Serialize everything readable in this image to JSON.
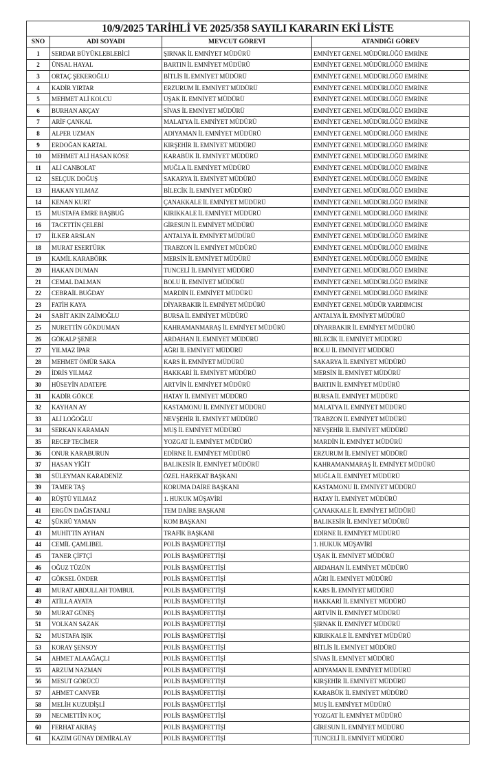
{
  "title": "10/9/2025 TARİHLİ VE 2025/358 SAYILI KARARIN EKİ LİSTE",
  "headers": {
    "sno": "SNO",
    "name": "ADI SOYADI",
    "current": "MEVCUT GÖREVİ",
    "assigned": "ATANDIĞI GÖREV"
  },
  "rows": [
    [
      "1",
      "SERDAR BÜYÜKLEBLEBİCİ",
      "ŞIRNAK İL EMNİYET MÜDÜRÜ",
      "EMNİYET GENEL MÜDÜRLÜĞÜ EMRİNE"
    ],
    [
      "2",
      "ÜNSAL HAYAL",
      "BARTIN İL EMNİYET MÜDÜRÜ",
      "EMNİYET GENEL MÜDÜRLÜĞÜ EMRİNE"
    ],
    [
      "3",
      "ORTAÇ ŞEKEROĞLU",
      "BİTLİS İL EMNİYET MÜDÜRÜ",
      "EMNİYET GENEL MÜDÜRLÜĞÜ EMRİNE"
    ],
    [
      "4",
      "KADİR YIRTAR",
      "ERZURUM İL EMNİYET MÜDÜRÜ",
      "EMNİYET GENEL MÜDÜRLÜĞÜ EMRİNE"
    ],
    [
      "5",
      "MEHMET ALİ KOLCU",
      "UŞAK İL EMNİYET MÜDÜRÜ",
      "EMNİYET GENEL MÜDÜRLÜĞÜ EMRİNE"
    ],
    [
      "6",
      "BURHAN AKÇAY",
      "SİVAS İL EMNİYET MÜDÜRÜ",
      "EMNİYET GENEL MÜDÜRLÜĞÜ EMRİNE"
    ],
    [
      "7",
      "ARİF ÇANKAL",
      "MALATYA İL EMNİYET MÜDÜRÜ",
      "EMNİYET GENEL MÜDÜRLÜĞÜ EMRİNE"
    ],
    [
      "8",
      "ALPER UZMAN",
      "ADIYAMAN İL EMNİYET MÜDÜRÜ",
      "EMNİYET GENEL MÜDÜRLÜĞÜ EMRİNE"
    ],
    [
      "9",
      "ERDOĞAN KARTAL",
      "KIRŞEHİR İL EMNİYET MÜDÜRÜ",
      "EMNİYET GENEL MÜDÜRLÜĞÜ EMRİNE"
    ],
    [
      "10",
      "MEHMET ALİ HASAN KÖSE",
      "KARABÜK İL EMNİYET MÜDÜRÜ",
      "EMNİYET GENEL MÜDÜRLÜĞÜ EMRİNE"
    ],
    [
      "11",
      "ALİ CANBOLAT",
      "MUĞLA İL EMNİYET MÜDÜRÜ",
      "EMNİYET GENEL MÜDÜRLÜĞÜ EMRİNE"
    ],
    [
      "12",
      "SELÇUK DOĞUŞ",
      "SAKARYA İL EMNİYET MÜDÜRÜ",
      "EMNİYET GENEL MÜDÜRLÜĞÜ EMRİNE"
    ],
    [
      "13",
      "HAKAN YILMAZ",
      "BİLECİK İL EMNİYET MÜDÜRÜ",
      "EMNİYET GENEL MÜDÜRLÜĞÜ EMRİNE"
    ],
    [
      "14",
      "KENAN KURT",
      "ÇANAKKALE İL EMNİYET MÜDÜRÜ",
      "EMNİYET GENEL MÜDÜRLÜĞÜ EMRİNE"
    ],
    [
      "15",
      "MUSTAFA EMRE BAŞBUĞ",
      "KIRIKKALE İL EMNİYET MÜDÜRÜ",
      "EMNİYET GENEL MÜDÜRLÜĞÜ EMRİNE"
    ],
    [
      "16",
      "TACETTİN ÇELEBİ",
      "GİRESUN İL EMNİYET MÜDÜRÜ",
      "EMNİYET GENEL MÜDÜRLÜĞÜ EMRİNE"
    ],
    [
      "17",
      "İLKER ARSLAN",
      "ANTALYA İL EMNİYET MÜDÜRÜ",
      "EMNİYET GENEL MÜDÜRLÜĞÜ EMRİNE"
    ],
    [
      "18",
      "MURAT ESERTÜRK",
      "TRABZON İL EMNİYET MÜDÜRÜ",
      "EMNİYET GENEL MÜDÜRLÜĞÜ EMRİNE"
    ],
    [
      "19",
      "KAMİL KARABÖRK",
      "MERSİN İL EMNİYET MÜDÜRÜ",
      "EMNİYET GENEL MÜDÜRLÜĞÜ EMRİNE"
    ],
    [
      "20",
      "HAKAN DUMAN",
      "TUNCELİ İL EMNİYET MÜDÜRÜ",
      "EMNİYET GENEL MÜDÜRLÜĞÜ EMRİNE"
    ],
    [
      "21",
      "CEMAL DALMAN",
      "BOLU İL EMNİYET MÜDÜRÜ",
      "EMNİYET GENEL MÜDÜRLÜĞÜ EMRİNE"
    ],
    [
      "22",
      "CEBRAİL BUĞDAY",
      "MARDİN İL EMNİYET MÜDÜRÜ",
      "EMNİYET GENEL MÜDÜRLÜĞÜ EMRİNE"
    ],
    [
      "23",
      "FATİH KAYA",
      "DİYARBAKIR İL EMNİYET MÜDÜRÜ",
      "EMNİYET GENEL MÜDÜR YARDIMCISI"
    ],
    [
      "24",
      "SABİT AKIN ZAİMOĞLU",
      "BURSA İL EMNİYET MÜDÜRÜ",
      "ANTALYA İL EMNİYET MÜDÜRÜ"
    ],
    [
      "25",
      "NURETTİN GÖKDUMAN",
      "KAHRAMANMARAŞ İL EMNİYET MÜDÜRÜ",
      "DİYARBAKIR İL EMNİYET MÜDÜRÜ"
    ],
    [
      "26",
      "GÖKALP ŞENER",
      "ARDAHAN İL EMNİYET MÜDÜRÜ",
      "BİLECİK İL EMNİYET MÜDÜRÜ"
    ],
    [
      "27",
      "YILMAZ İPAR",
      "AĞRI İL EMNİYET MÜDÜRÜ",
      "BOLU İL EMNİYET MÜDÜRÜ"
    ],
    [
      "28",
      "MEHMET ÖMÜR SAKA",
      "KARS İL EMNİYET MÜDÜRÜ",
      "SAKARYA İL EMNİYET MÜDÜRÜ"
    ],
    [
      "29",
      "İDRİS YILMAZ",
      "HAKKARİ İL EMNİYET MÜDÜRÜ",
      "MERSİN İL EMNİYET MÜDÜRÜ"
    ],
    [
      "30",
      "HÜSEYİN ADATEPE",
      "ARTVİN İL EMNİYET MÜDÜRÜ",
      "BARTIN İL EMNİYET MÜDÜRÜ"
    ],
    [
      "31",
      "KADİR GÖKCE",
      "HATAY İL EMNİYET MÜDÜRÜ",
      "BURSA İL EMNİYET MÜDÜRÜ"
    ],
    [
      "32",
      "KAYHAN AY",
      "KASTAMONU İL EMNİYET MÜDÜRÜ",
      "MALATYA İL EMNİYET MÜDÜRÜ"
    ],
    [
      "33",
      "ALİ LOĞOĞLU",
      "NEVŞEHİR İL EMNİYET MÜDÜRÜ",
      "TRABZON İL EMNİYET MÜDÜRÜ"
    ],
    [
      "34",
      "SERKAN KARAMAN",
      "MUŞ İL EMNİYET MÜDÜRÜ",
      "NEVŞEHİR İL EMNİYET MÜDÜRÜ"
    ],
    [
      "35",
      "RECEP TECİMER",
      "YOZGAT İL EMNİYET MÜDÜRÜ",
      "MARDİN İL EMNİYET MÜDÜRÜ"
    ],
    [
      "36",
      "ONUR KARABURUN",
      "EDİRNE İL EMNİYET MÜDÜRÜ",
      "ERZURUM İL EMNİYET MÜDÜRÜ"
    ],
    [
      "37",
      "HASAN YİĞİT",
      "BALIKESİR İL EMNİYET MÜDÜRÜ",
      "KAHRAMANMARAŞ İL EMNİYET MÜDÜRÜ"
    ],
    [
      "38",
      "SÜLEYMAN KARADENİZ",
      "ÖZEL HAREKAT BAŞKANI",
      "MUĞLA İL EMNİYET MÜDÜRÜ"
    ],
    [
      "39",
      "TAMER TAŞ",
      "KORUMA DAİRE BAŞKANI",
      "KASTAMONU İL EMNİYET MÜDÜRÜ"
    ],
    [
      "40",
      "RÜŞTÜ YILMAZ",
      "1. HUKUK MÜŞAVİRİ",
      "HATAY İL EMNİYET MÜDÜRÜ"
    ],
    [
      "41",
      "ERGÜN DAĞISTANLI",
      "TEM DAİRE BAŞKANI",
      "ÇANAKKALE İL EMNİYET MÜDÜRÜ"
    ],
    [
      "42",
      "ŞÜKRÜ YAMAN",
      "KOM BAŞKANI",
      "BALIKESİR İL EMNİYET MÜDÜRÜ"
    ],
    [
      "43",
      "MUHİTTİN AYHAN",
      "TRAFİK BAŞKANI",
      "EDİRNE İL EMNİYET MÜDÜRÜ"
    ],
    [
      "44",
      "CEMİL ÇAMLIBEL",
      "POLİS BAŞMÜFETTİŞİ",
      "1. HUKUK MÜŞAVİRİ"
    ],
    [
      "45",
      "TANER ÇİFTÇİ",
      "POLİS BAŞMÜFETTİŞİ",
      "UŞAK İL EMNİYET MÜDÜRÜ"
    ],
    [
      "46",
      "OĞUZ TÜZÜN",
      "POLİS BAŞMÜFETTİŞİ",
      "ARDAHAN İL EMNİYET MÜDÜRÜ"
    ],
    [
      "47",
      "GÖKSEL ÖNDER",
      "POLİS BAŞMÜFETTİŞİ",
      "AĞRI İL EMNİYET MÜDÜRÜ"
    ],
    [
      "48",
      "MURAT ABDULLAH TOMBUL",
      "POLİS BAŞMÜFETTİŞİ",
      "KARS İL EMNİYET MÜDÜRÜ"
    ],
    [
      "49",
      "ATİLLA AYATA",
      "POLİS BAŞMÜFETTİŞİ",
      "HAKKARİ İL EMNİYET MÜDÜRÜ"
    ],
    [
      "50",
      "MURAT GÜNEŞ",
      "POLİS BAŞMÜFETTİŞİ",
      "ARTVİN İL EMNİYET MÜDÜRÜ"
    ],
    [
      "51",
      "VOLKAN SAZAK",
      "POLİS BAŞMÜFETTİŞİ",
      "ŞIRNAK İL EMNİYET MÜDÜRÜ"
    ],
    [
      "52",
      "MUSTAFA IŞIK",
      "POLİS BAŞMÜFETTİŞİ",
      "KIRIKKALE İL EMNİYET MÜDÜRÜ"
    ],
    [
      "53",
      "KORAY ŞENSOY",
      "POLİS BAŞMÜFETTİŞİ",
      "BİTLİS İL EMNİYET MÜDÜRÜ"
    ],
    [
      "54",
      "AHMET ALAAĞAÇLI",
      "POLİS BAŞMÜFETTİŞİ",
      "SİVAS İL EMNİYET MÜDÜRÜ"
    ],
    [
      "55",
      "ARZUM NAZMAN",
      "POLİS BAŞMÜFETTİŞİ",
      "ADIYAMAN İL EMNİYET MÜDÜRÜ"
    ],
    [
      "56",
      "MESUT GÖRÜCÜ",
      "POLİS BAŞMÜFETTİŞİ",
      "KIRŞEHİR İL EMNİYET MÜDÜRÜ"
    ],
    [
      "57",
      "AHMET CANVER",
      "POLİS BAŞMÜFETTİŞİ",
      "KARABÜK İL EMNİYET MÜDÜRÜ"
    ],
    [
      "58",
      "MELİH KUZUDİŞLİ",
      "POLİS BAŞMÜFETTİŞİ",
      "MUŞ İL EMNİYET MÜDÜRÜ"
    ],
    [
      "59",
      "NECMETTİN KOÇ",
      "POLİS BAŞMÜFETTİŞİ",
      "YOZGAT İL EMNİYET MÜDÜRÜ"
    ],
    [
      "60",
      "FERHAT AKBAŞ",
      "POLİS BAŞMÜFETTİŞİ",
      "GİRESUN İL EMNİYET MÜDÜRÜ"
    ],
    [
      "61",
      "KAZIM GÜNAY DEMİRALAY",
      "POLİS BAŞMÜFETTİŞİ",
      "TUNCELİ İL EMNİYET MÜDÜRÜ"
    ]
  ]
}
